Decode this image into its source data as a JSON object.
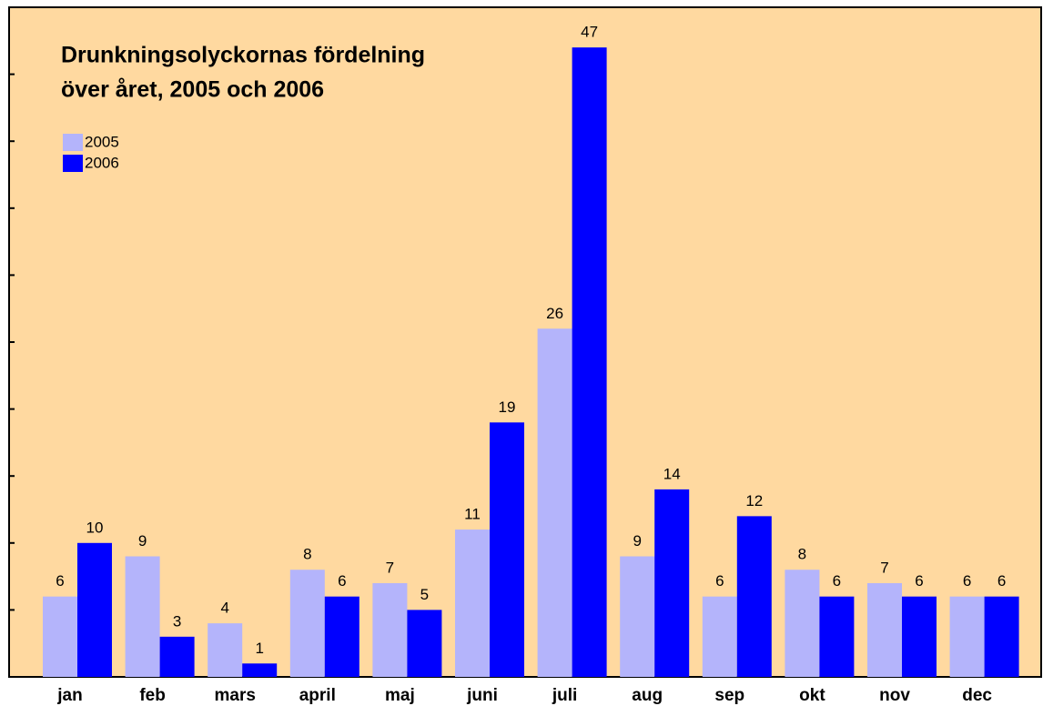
{
  "chart_data": {
    "type": "bar",
    "title": [
      "Drunkningsolyckornas fördelning",
      "över året, 2005 och  2006"
    ],
    "categories": [
      "jan",
      "feb",
      "mars",
      "april",
      "maj",
      "juni",
      "juli",
      "aug",
      "sep",
      "okt",
      "nov",
      "dec"
    ],
    "series": [
      {
        "name": "2005",
        "color": "#b4b4fb",
        "values": [
          6,
          9,
          4,
          8,
          7,
          11,
          26,
          9,
          6,
          8,
          7,
          6
        ]
      },
      {
        "name": "2006",
        "color": "#0000ff",
        "values": [
          10,
          3,
          1,
          6,
          5,
          19,
          47,
          14,
          12,
          6,
          6,
          6
        ]
      }
    ],
    "ylim": [
      0,
      50
    ],
    "yticks": [
      0,
      5,
      10,
      15,
      20,
      25,
      30,
      35,
      40,
      45,
      50
    ],
    "background": "#ffd9a0",
    "legend": "upper left"
  }
}
